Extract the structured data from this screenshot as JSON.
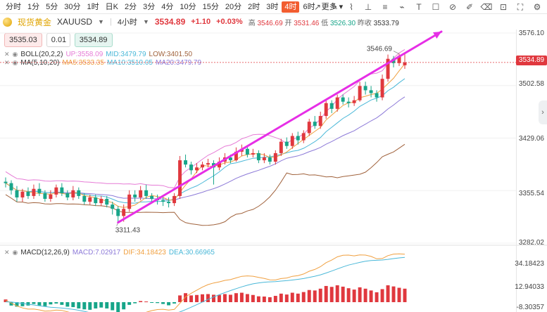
{
  "toolbar": {
    "timeframes": [
      "分时",
      "1分",
      "5分",
      "30分",
      "1时",
      "日K",
      "2分",
      "3分",
      "4分",
      "10分",
      "15分",
      "20分",
      "2时",
      "3时",
      "4时",
      "6时",
      "更多"
    ],
    "active_index": 14,
    "tool_icons": [
      "trendline-icon",
      "pen-icon",
      "text-icon",
      "ruler-icon",
      "fib-icon",
      "brush-icon",
      "text-T-icon",
      "lock-icon",
      "hide-icon",
      "edit-icon",
      "eraser-icon",
      "camera-icon",
      "fullscreen-icon",
      "settings-icon"
    ]
  },
  "header": {
    "symbol_name": "现货黄金",
    "symbol_code": "XAUUSD",
    "interval": "4小时",
    "price": "3534.89",
    "change": "+1.10",
    "change_pct": "+0.03%",
    "high_label": "高",
    "high": "3546.69",
    "open_label": "开",
    "open": "3531.46",
    "low_label": "低",
    "low": "3526.30",
    "prev_label": "昨收",
    "prev": "3533.79"
  },
  "order": {
    "sell": "3535.03",
    "qty": "0.01",
    "buy": "3534.89"
  },
  "indicators": {
    "boll": {
      "name": "BOLL(20,2,2)",
      "up": "UP:3558.09",
      "mid": "MID:3479.79",
      "low": "LOW:3401.50"
    },
    "ma": {
      "name": "MA(5,10,20)",
      "ma5": "MA5:3533.35",
      "ma10": "MA10:3510.05",
      "ma20": "MA20:3479.79"
    },
    "macd": {
      "name": "MACD(12,26,9)",
      "macd": "MACD:7.02917",
      "dif": "DIF:34.18423",
      "dea": "DEA:30.66965"
    }
  },
  "yaxis": {
    "main": [
      "3576.10",
      "3502.58",
      "3429.06",
      "3355.54",
      "3282.02"
    ],
    "current": "3534.89",
    "macd": [
      "34.18423",
      "12.94033",
      "-8.30357"
    ]
  },
  "annotations": {
    "high": "3546.69",
    "low": "3311.43"
  },
  "colors": {
    "up": "#e0383e",
    "down": "#17a589",
    "boll_up": "#e67bd6",
    "boll_mid": "#4ab8d8",
    "boll_low": "#a0623c",
    "ma5": "#f0a040",
    "ma10": "#4ab8d8",
    "ma20": "#8d7ad8",
    "trend": "#e62ee6"
  },
  "candles": [
    [
      3368,
      3366,
      3374,
      3360
    ],
    [
      3366,
      3356,
      3370,
      3350
    ],
    [
      3356,
      3346,
      3362,
      3340
    ],
    [
      3346,
      3354,
      3358,
      3340
    ],
    [
      3354,
      3348,
      3360,
      3344
    ],
    [
      3348,
      3358,
      3364,
      3344
    ],
    [
      3358,
      3352,
      3366,
      3348
    ],
    [
      3352,
      3344,
      3356,
      3340
    ],
    [
      3344,
      3350,
      3356,
      3340
    ],
    [
      3350,
      3360,
      3364,
      3346
    ],
    [
      3360,
      3352,
      3366,
      3348
    ],
    [
      3352,
      3346,
      3356,
      3342
    ],
    [
      3346,
      3356,
      3362,
      3342
    ],
    [
      3356,
      3348,
      3360,
      3344
    ],
    [
      3348,
      3340,
      3352,
      3336
    ],
    [
      3340,
      3346,
      3350,
      3336
    ],
    [
      3346,
      3338,
      3350,
      3334
    ],
    [
      3338,
      3344,
      3348,
      3334
    ],
    [
      3344,
      3336,
      3348,
      3332
    ],
    [
      3336,
      3330,
      3340,
      3322
    ],
    [
      3330,
      3320,
      3334,
      3311
    ],
    [
      3320,
      3330,
      3336,
      3312
    ],
    [
      3330,
      3350,
      3356,
      3326
    ],
    [
      3350,
      3346,
      3356,
      3340
    ],
    [
      3346,
      3356,
      3362,
      3342
    ],
    [
      3356,
      3348,
      3364,
      3344
    ],
    [
      3348,
      3344,
      3352,
      3340
    ],
    [
      3344,
      3342,
      3350,
      3336
    ],
    [
      3342,
      3340,
      3346,
      3334
    ],
    [
      3340,
      3338,
      3346,
      3332
    ],
    [
      3338,
      3348,
      3352,
      3334
    ],
    [
      3348,
      3398,
      3404,
      3344
    ],
    [
      3398,
      3392,
      3406,
      3388
    ],
    [
      3392,
      3384,
      3396,
      3378
    ],
    [
      3384,
      3388,
      3394,
      3380
    ],
    [
      3388,
      3392,
      3396,
      3384
    ],
    [
      3392,
      3394,
      3400,
      3388
    ],
    [
      3394,
      3388,
      3398,
      3364
    ],
    [
      3388,
      3396,
      3402,
      3384
    ],
    [
      3396,
      3402,
      3408,
      3392
    ],
    [
      3402,
      3398,
      3406,
      3394
    ],
    [
      3398,
      3410,
      3416,
      3396
    ],
    [
      3410,
      3414,
      3420,
      3404
    ],
    [
      3414,
      3406,
      3418,
      3402
    ],
    [
      3406,
      3408,
      3414,
      3402
    ],
    [
      3408,
      3398,
      3412,
      3394
    ],
    [
      3398,
      3402,
      3408,
      3394
    ],
    [
      3402,
      3396,
      3406,
      3392
    ],
    [
      3396,
      3408,
      3412,
      3392
    ],
    [
      3408,
      3424,
      3428,
      3404
    ],
    [
      3424,
      3418,
      3430,
      3414
    ],
    [
      3418,
      3432,
      3436,
      3414
    ],
    [
      3432,
      3426,
      3438,
      3420
    ],
    [
      3426,
      3436,
      3440,
      3422
    ],
    [
      3436,
      3452,
      3456,
      3432
    ],
    [
      3452,
      3446,
      3460,
      3442
    ],
    [
      3446,
      3460,
      3466,
      3442
    ],
    [
      3460,
      3478,
      3484,
      3456
    ],
    [
      3478,
      3470,
      3482,
      3464
    ],
    [
      3470,
      3486,
      3490,
      3466
    ],
    [
      3486,
      3480,
      3490,
      3476
    ],
    [
      3480,
      3478,
      3486,
      3472
    ],
    [
      3478,
      3482,
      3488,
      3474
    ],
    [
      3482,
      3502,
      3508,
      3480
    ],
    [
      3502,
      3496,
      3508,
      3490
    ],
    [
      3496,
      3492,
      3502,
      3486
    ],
    [
      3492,
      3486,
      3496,
      3480
    ],
    [
      3486,
      3512,
      3518,
      3482
    ],
    [
      3512,
      3540,
      3546,
      3508
    ],
    [
      3540,
      3534,
      3544,
      3528
    ],
    [
      3534,
      3544,
      3547,
      3530
    ],
    [
      3531,
      3535,
      3547,
      3526
    ]
  ],
  "macd_hist": [
    1.2,
    -1.5,
    -2,
    -1.8,
    -1.5,
    -0.8,
    -1.5,
    -1.8,
    -1,
    -0.6,
    -1.2,
    -2,
    -2.2,
    -2.8,
    -3.2,
    -3.4,
    -2.8,
    -2.4,
    -2.8,
    -3.6,
    -4.5,
    -3.2,
    -1.2,
    -0.5,
    0.5,
    0.3,
    -0.2,
    -0.4,
    -0.8,
    -1.4,
    -0.6,
    3,
    4,
    3,
    3.2,
    3.5,
    3.6,
    3.3,
    3.2,
    3.6,
    3.3,
    4,
    4.2,
    3.6,
    3.2,
    2.6,
    2.5,
    2.2,
    2.8,
    3.8,
    3.4,
    4.2,
    3.8,
    4.5,
    5.4,
    5.2,
    6,
    7.2,
    6.8,
    7.5,
    6.9,
    6.2,
    5.6,
    6.6,
    6,
    5.2,
    4.4,
    5.8,
    7.5,
    7,
    6.4,
    6
  ]
}
